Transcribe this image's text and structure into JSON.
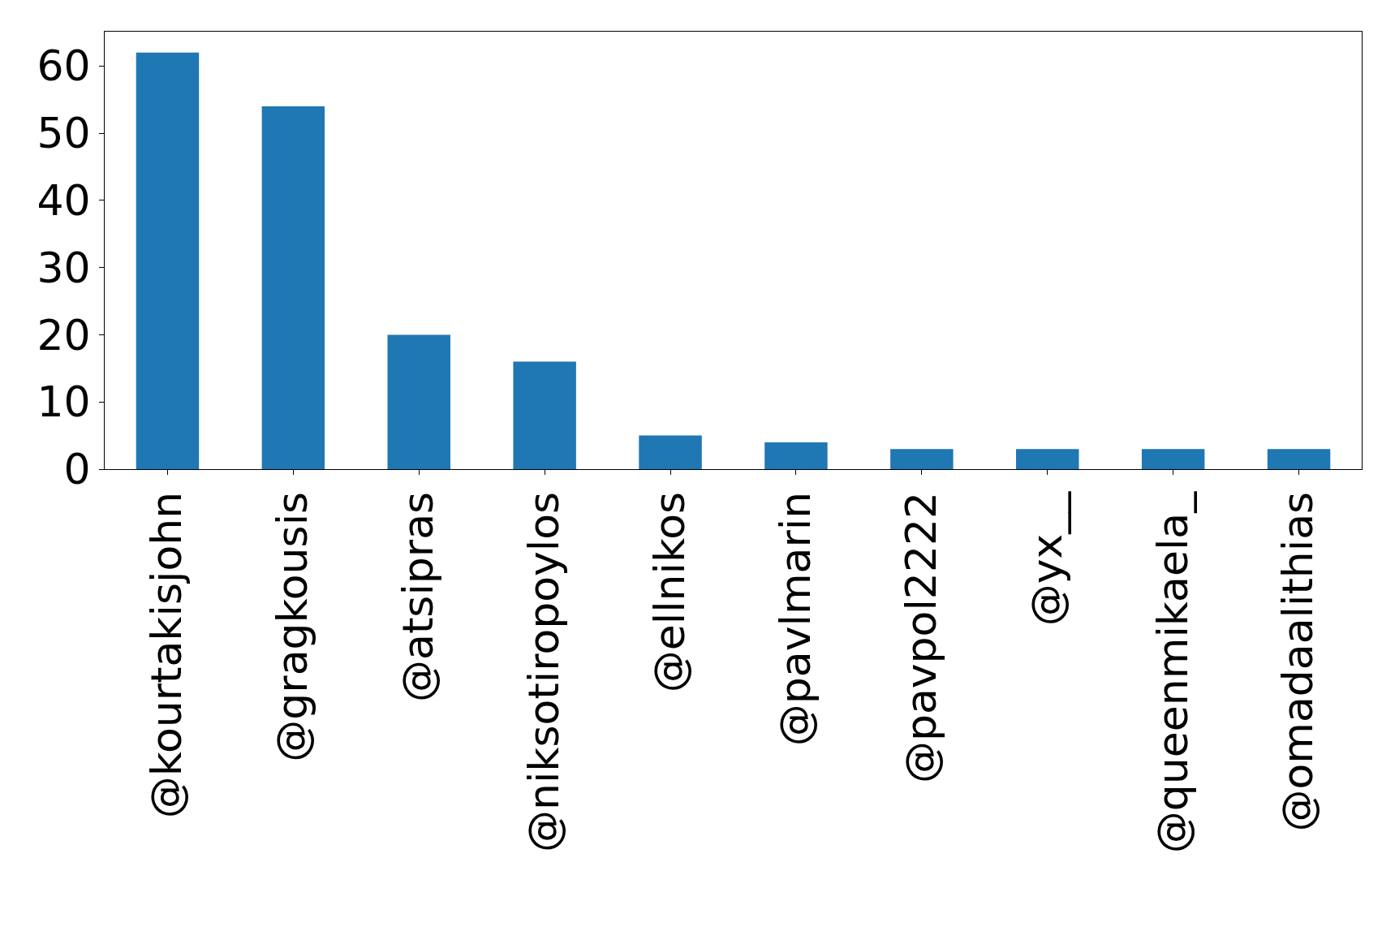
{
  "chart_data": {
    "type": "bar",
    "categories": [
      "@kourtakisjohn",
      "@gragkousis",
      "@atsipras",
      "@niksotiropoylos",
      "@ellnikos",
      "@pavlmarin",
      "@pavpol2222",
      "@yx__",
      "@queenmikaela_",
      "@omadaalithias"
    ],
    "values": [
      62,
      54,
      20,
      16,
      5,
      4,
      3,
      3,
      3,
      3
    ],
    "color": "#1f77b4",
    "ylim": [
      0,
      65.1
    ],
    "yticks": [
      0,
      10,
      20,
      30,
      40,
      50,
      60
    ],
    "grid": false,
    "legend": false
  }
}
